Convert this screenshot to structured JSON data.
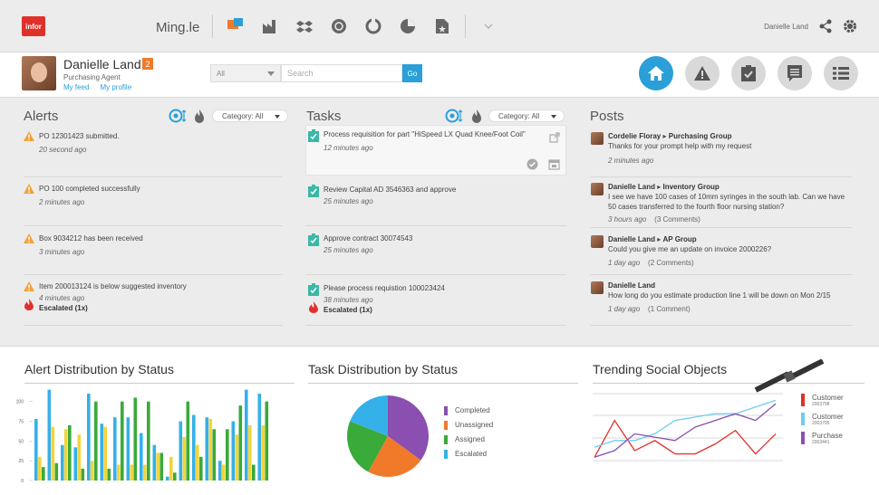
{
  "header": {
    "logo": "infor",
    "app_name": "Ming.le",
    "user_name": "Danielle Land",
    "app_icons": [
      "chat-icon",
      "factory-icon",
      "dropbox-icon",
      "globe-icon",
      "sync-icon",
      "pie-chart-icon",
      "document-icon"
    ]
  },
  "profile": {
    "name": "Danielle Land",
    "badge": "2",
    "role": "Purchasing Agent",
    "links": [
      "My feed",
      "My profile"
    ],
    "search_scope": "All",
    "search_placeholder": "Search",
    "go_label": "Go",
    "nav_icons": [
      "home-icon",
      "alert-icon",
      "task-icon",
      "post-icon",
      "list-icon"
    ]
  },
  "alerts": {
    "title": "Alerts",
    "category": "Category: All",
    "items": [
      {
        "text": "PO 12301423 submitted.",
        "time": "20 second ago"
      },
      {
        "text": "PO 100 completed successfully",
        "time": "2 minutes ago"
      },
      {
        "text": "Box 9034212 has been received",
        "time": "3 minutes ago"
      },
      {
        "text": "Item 200013124 is below suggested inventory",
        "time": "4 minutes ago",
        "escalated": "Escalated (1x)"
      }
    ]
  },
  "tasks": {
    "title": "Tasks",
    "category": "Category: All",
    "items": [
      {
        "text": "Process requisition for part \"HiSpeed LX Quad Knee/Foot Coil\"",
        "time": "12 minutes ago"
      },
      {
        "text": "Review Capital AD 3546363 and approve",
        "time": "25 minutes ago"
      },
      {
        "text": "Approve contract 30074543",
        "time": "25 minutes ago"
      },
      {
        "text": "Please process requistion 100023424",
        "time": "38 minutes ago",
        "escalated": "Escalated (1x)"
      }
    ]
  },
  "posts": {
    "title": "Posts",
    "items": [
      {
        "author": "Cordelie Floray",
        "group": "Purchasing Group",
        "text": "Thanks for your prompt help with my request",
        "time": "2 minutes ago",
        "comments": ""
      },
      {
        "author": "Danielle Land",
        "group": "Inventory Group",
        "text": "I see we have 100 cases of 10mm syringes in the south lab. Can we have 50 cases transferred to the fourth floor nursing station?",
        "time": "3 hours ago",
        "comments": "(3 Comments)"
      },
      {
        "author": "Danielle Land",
        "group": "AP Group",
        "text": "Could you give me an update on invoice 2000226?",
        "time": "1 day ago",
        "comments": "(2 Comments)"
      },
      {
        "author": "Danielle Land",
        "group": "",
        "text": "How long do you estimate production line 1 will be down on Mon 2/15",
        "time": "1 day ago",
        "comments": "(1 Comment)"
      }
    ]
  },
  "colors": {
    "accent": "#2a9fd8",
    "alert_orange": "#f0a23a",
    "escalated": "#e0302a",
    "task_green": "#3bb8a6",
    "completed": "#8a4fb0",
    "unassigned": "#f07a2a",
    "assigned": "#3aaa3a",
    "escalated_blue": "#35b0e8",
    "bar_blue": "#35b0e8",
    "bar_yellow": "#f3d43a",
    "bar_green": "#3aaa3a",
    "customer_red": "#e0302a",
    "customer_blue": "#6fcdf0",
    "purchase_purple": "#8a4fb0"
  },
  "charts": {
    "alert_title": "Alert Distribution by Status",
    "task_title": "Task Distribution by Status",
    "trend_title": "Trending Social Objects"
  },
  "chart_data": [
    {
      "type": "bar",
      "title": "Alert Distribution by Status",
      "yticks": [
        "100",
        "75",
        "50",
        "25",
        "0"
      ],
      "ylim": [
        0,
        110
      ],
      "series": [
        {
          "values": [
            78,
            115,
            45,
            42,
            110,
            72,
            80,
            80,
            60,
            45,
            5,
            75,
            83,
            80,
            25,
            75,
            115,
            110
          ]
        },
        {
          "values": [
            30,
            68,
            65,
            58,
            25,
            68,
            20,
            20,
            20,
            35,
            30,
            55,
            45,
            78,
            20,
            58,
            70,
            70
          ]
        },
        {
          "values": [
            17,
            22,
            70,
            15,
            100,
            15,
            100,
            105,
            100,
            35,
            10,
            100,
            30,
            65,
            65,
            95,
            20,
            100
          ]
        }
      ]
    },
    {
      "type": "pie",
      "title": "Task Distribution by Status",
      "categories": [
        "Completed",
        "Unassigned",
        "Assigned",
        "Escalated"
      ],
      "values": [
        35,
        23,
        23,
        19
      ]
    },
    {
      "type": "line",
      "title": "Trending Social Objects",
      "series": [
        {
          "name": "Customer",
          "sub": "2003798",
          "values": [
            5,
            60,
            15,
            30,
            10,
            10,
            25,
            45,
            10,
            40
          ]
        },
        {
          "name": "Customer",
          "sub": "2003795",
          "values": [
            20,
            30,
            30,
            40,
            60,
            65,
            70,
            70,
            80,
            90
          ]
        },
        {
          "name": "Purchase",
          "sub": "2003441",
          "values": [
            5,
            15,
            40,
            35,
            30,
            50,
            60,
            70,
            60,
            85
          ]
        }
      ]
    }
  ]
}
